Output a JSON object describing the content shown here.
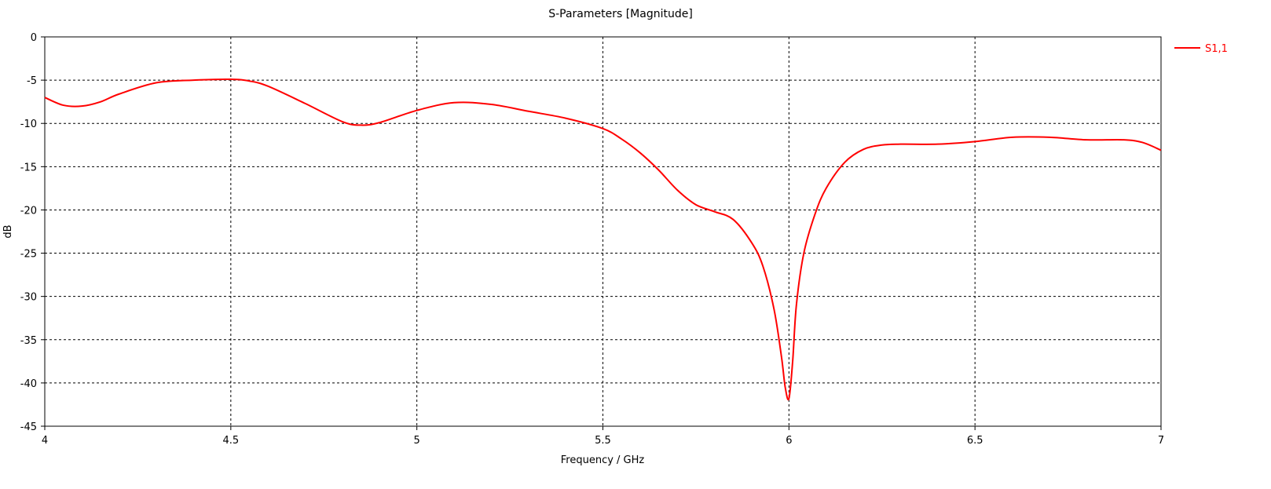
{
  "chart_data": {
    "type": "line",
    "title": "S-Parameters [Magnitude]",
    "xlabel": "Frequency / GHz",
    "ylabel": "dB",
    "xlim": [
      4,
      7
    ],
    "ylim": [
      -45,
      0
    ],
    "xticks": [
      4,
      4.5,
      5,
      5.5,
      6,
      6.5,
      7
    ],
    "yticks": [
      0,
      -5,
      -10,
      -15,
      -20,
      -25,
      -30,
      -35,
      -40,
      -45
    ],
    "grid": true,
    "legend_position": "top-right",
    "series": [
      {
        "name": "S1,1",
        "color": "#ff0000",
        "x": [
          4.0,
          4.05,
          4.1,
          4.15,
          4.2,
          4.3,
          4.4,
          4.5,
          4.55,
          4.6,
          4.7,
          4.8,
          4.85,
          4.9,
          5.0,
          5.1,
          5.2,
          5.3,
          5.4,
          5.5,
          5.55,
          5.6,
          5.65,
          5.7,
          5.75,
          5.8,
          5.85,
          5.9,
          5.93,
          5.96,
          5.98,
          5.99,
          6.0,
          6.01,
          6.02,
          6.04,
          6.07,
          6.1,
          6.15,
          6.2,
          6.25,
          6.3,
          6.4,
          6.5,
          6.6,
          6.7,
          6.8,
          6.9,
          6.95,
          7.0
        ],
        "values": [
          -7.0,
          -7.9,
          -8.0,
          -7.5,
          -6.6,
          -5.3,
          -5.0,
          -4.9,
          -5.1,
          -5.7,
          -7.7,
          -9.8,
          -10.2,
          -9.9,
          -8.5,
          -7.6,
          -7.8,
          -8.6,
          -9.4,
          -10.6,
          -11.8,
          -13.4,
          -15.4,
          -17.7,
          -19.4,
          -20.2,
          -21.1,
          -23.8,
          -26.5,
          -31.5,
          -37.0,
          -40.5,
          -41.8,
          -37.5,
          -31.0,
          -25.0,
          -20.5,
          -17.5,
          -14.5,
          -13.0,
          -12.5,
          -12.4,
          -12.4,
          -12.1,
          -11.6,
          -11.6,
          -11.9,
          -11.9,
          -12.2,
          -13.1
        ]
      }
    ]
  }
}
